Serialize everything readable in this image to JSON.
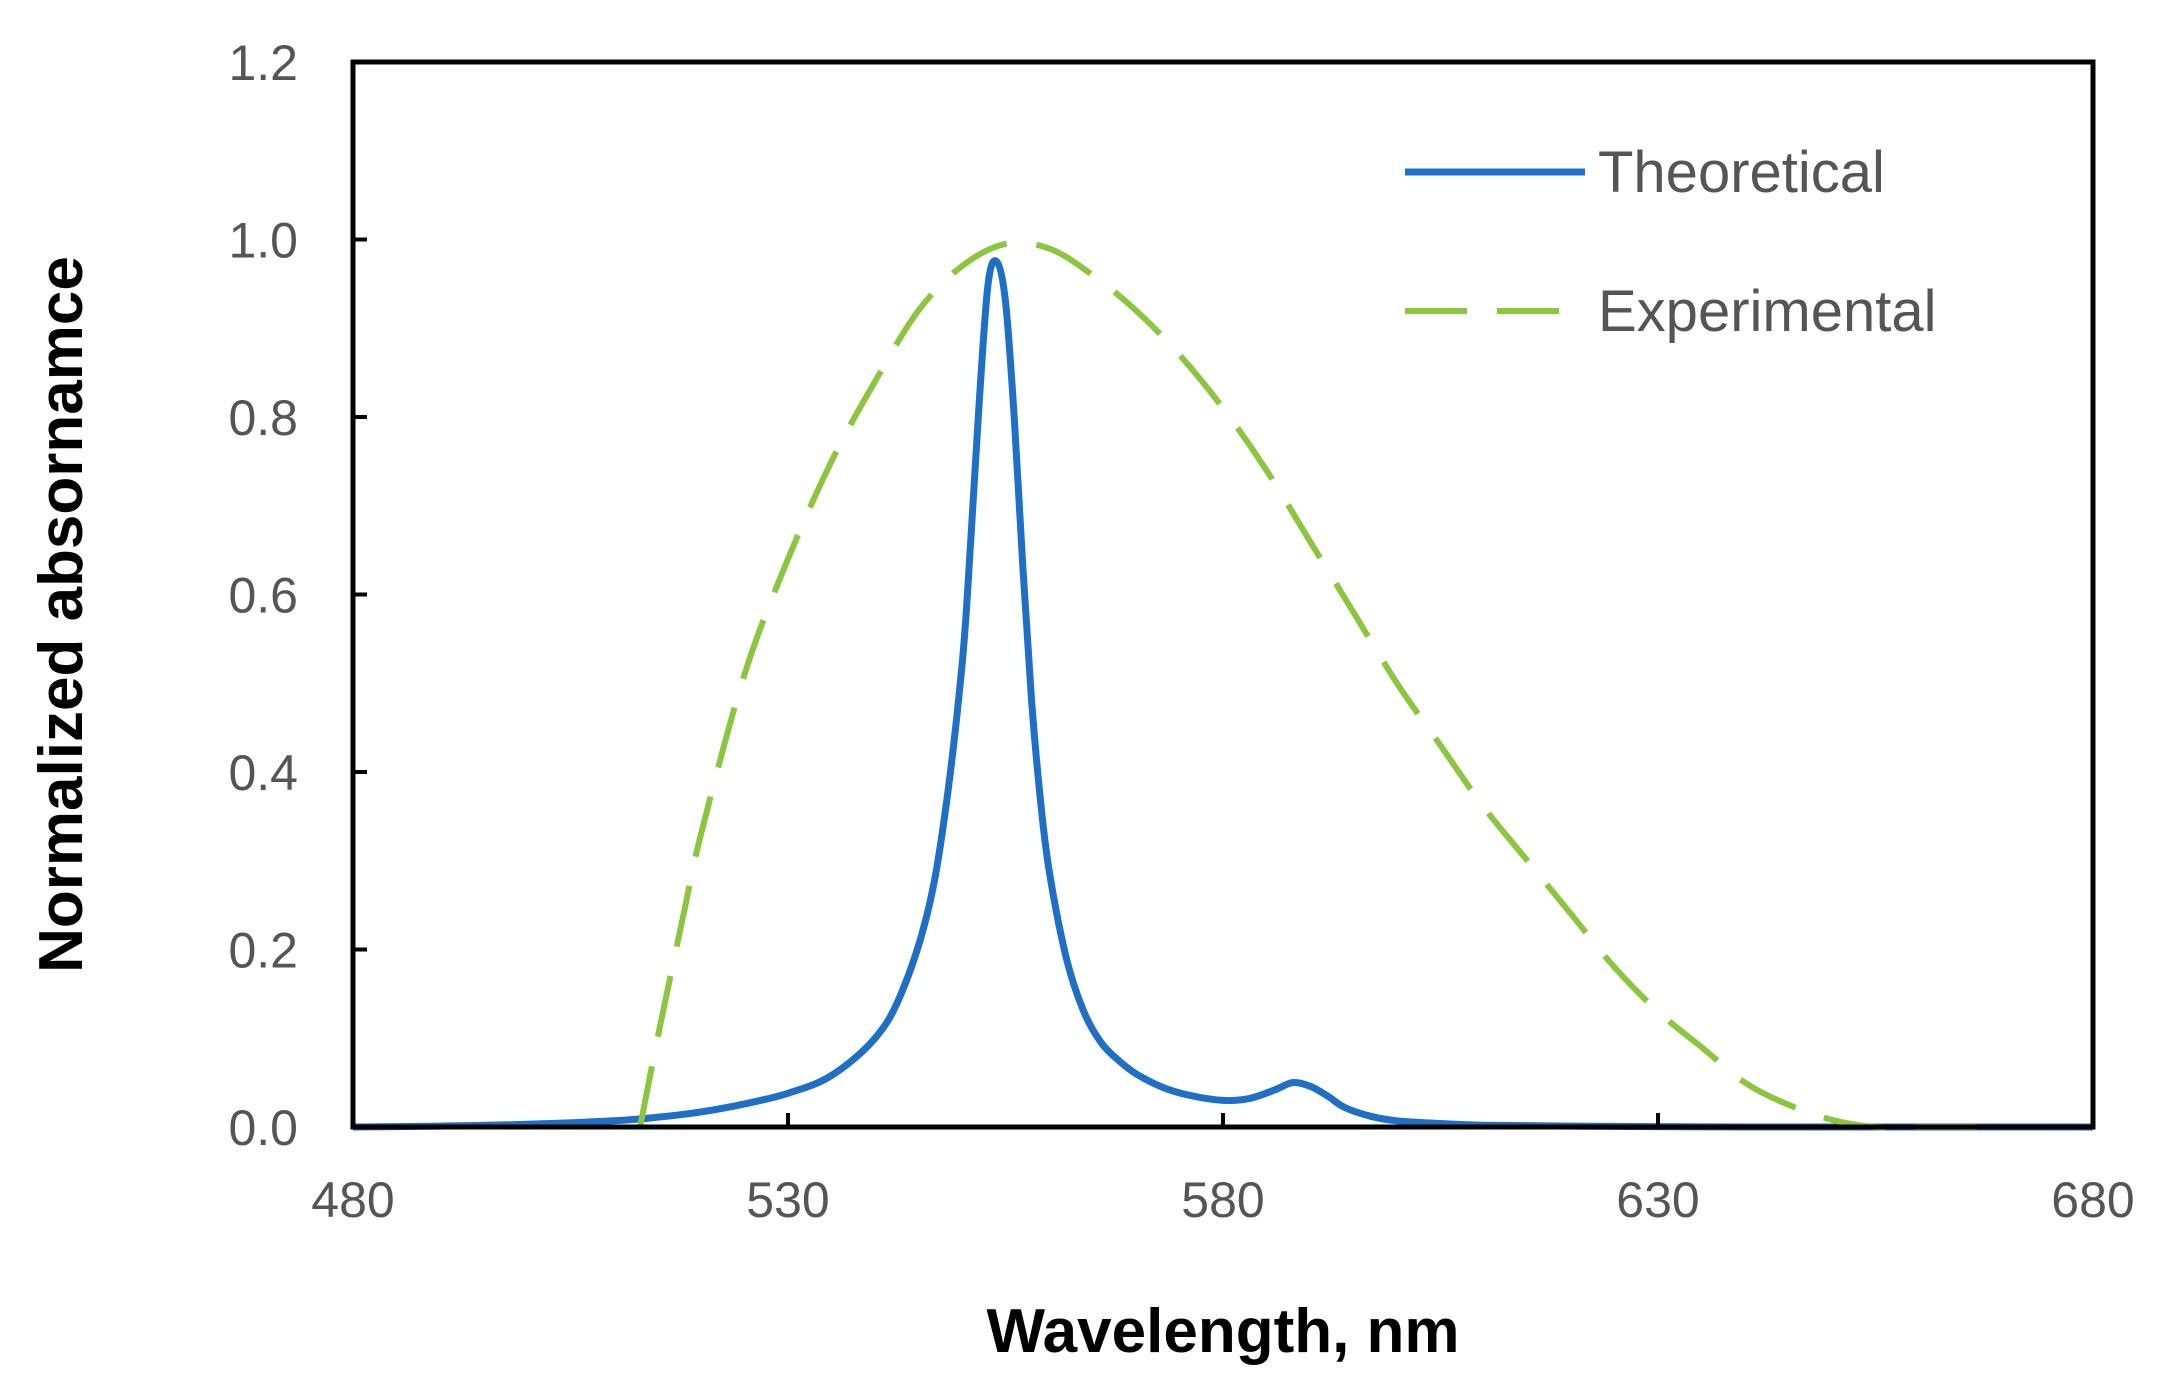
{
  "chart_data": {
    "type": "line",
    "title": "",
    "xlabel": "Wavelength, nm",
    "ylabel": "Normalized absornamce",
    "xlim": [
      480,
      680
    ],
    "ylim": [
      0,
      1.2
    ],
    "xticks": [
      480,
      530,
      580,
      630,
      680
    ],
    "yticks": [
      0.0,
      0.2,
      0.4,
      0.6,
      0.8,
      1.0,
      1.2
    ],
    "xtick_labels": [
      "480",
      "530",
      "580",
      "630",
      "680"
    ],
    "ytick_labels": [
      "0.0",
      "0.2",
      "0.4",
      "0.6",
      "0.8",
      "1.0",
      "1.2"
    ],
    "grid": false,
    "legend_position": "top-right",
    "series": [
      {
        "name": "Theoretical",
        "color": "#1f6fc5",
        "style": "solid",
        "x": [
          480,
          490,
          500,
          510,
          515,
          520,
          525,
          530,
          535,
          540,
          543,
          546,
          548,
          550,
          551,
          552,
          553,
          554,
          555,
          556,
          557,
          558,
          559,
          560,
          562,
          564,
          566,
          568,
          570,
          573,
          576,
          580,
          583,
          586,
          588,
          590,
          592,
          594,
          597,
          600,
          605,
          610,
          620,
          640,
          660,
          680
        ],
        "y": [
          0.0,
          0.001,
          0.003,
          0.007,
          0.011,
          0.017,
          0.026,
          0.038,
          0.058,
          0.1,
          0.15,
          0.24,
          0.35,
          0.52,
          0.66,
          0.82,
          0.95,
          0.975,
          0.93,
          0.8,
          0.63,
          0.48,
          0.37,
          0.29,
          0.19,
          0.13,
          0.095,
          0.075,
          0.06,
          0.045,
          0.036,
          0.03,
          0.032,
          0.042,
          0.05,
          0.046,
          0.035,
          0.022,
          0.012,
          0.007,
          0.004,
          0.002,
          0.001,
          0.0,
          0.0,
          0.0
        ]
      },
      {
        "name": "Experimental",
        "color": "#8cc63f",
        "style": "dashed",
        "x": [
          513,
          515,
          518,
          520,
          525,
          530,
          535,
          540,
          545,
          550,
          555,
          560,
          565,
          570,
          575,
          580,
          585,
          590,
          595,
          600,
          605,
          610,
          615,
          620,
          625,
          630,
          635,
          640,
          645,
          650,
          655,
          660,
          665,
          670
        ],
        "y": [
          0.0,
          0.1,
          0.24,
          0.33,
          0.51,
          0.64,
          0.75,
          0.84,
          0.92,
          0.97,
          0.995,
          0.99,
          0.96,
          0.92,
          0.87,
          0.81,
          0.74,
          0.66,
          0.58,
          0.5,
          0.43,
          0.36,
          0.3,
          0.24,
          0.18,
          0.13,
          0.09,
          0.05,
          0.025,
          0.008,
          0.0,
          0.0,
          0.0,
          0.0
        ]
      }
    ]
  }
}
